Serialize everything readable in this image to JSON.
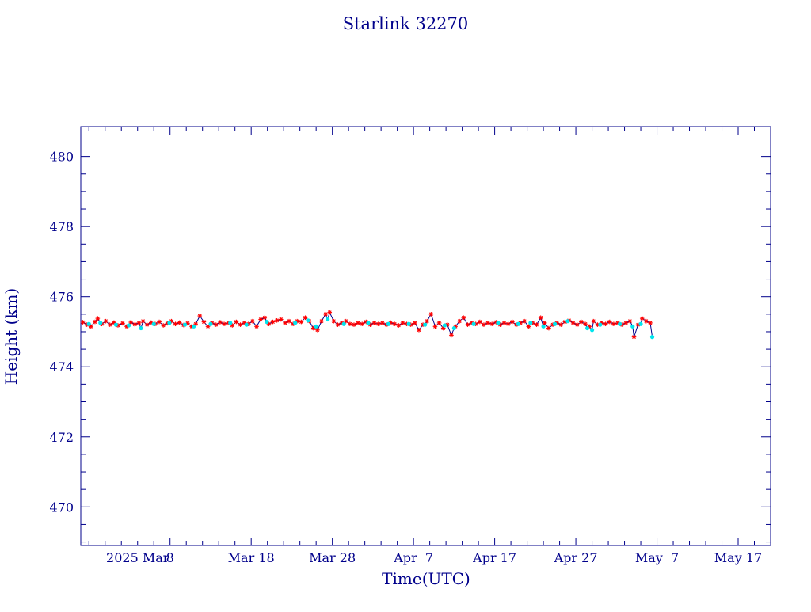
{
  "chart_data": {
    "type": "scatter",
    "title": "Starlink 32270",
    "xlabel": "Time(UTC)",
    "ylabel": "Height (km)",
    "ylim": [
      468.9,
      480.85
    ],
    "xlim": [
      "2025-02-25",
      "2025-05-21"
    ],
    "grid": false,
    "x_ticks": [
      {
        "date": "2025-02-26"
      },
      {
        "date": "2025-02-28"
      },
      {
        "date": "2025-03-02"
      },
      {
        "date": "2025-03-04"
      },
      {
        "date": "2025-03-06"
      },
      {
        "date": "2025-03-08",
        "label": "8"
      },
      {
        "date": "2025-03-10"
      },
      {
        "date": "2025-03-12"
      },
      {
        "date": "2025-03-14"
      },
      {
        "date": "2025-03-16"
      },
      {
        "date": "2025-03-18",
        "label": "Mar 18"
      },
      {
        "date": "2025-03-20"
      },
      {
        "date": "2025-03-22"
      },
      {
        "date": "2025-03-24"
      },
      {
        "date": "2025-03-26"
      },
      {
        "date": "2025-03-28",
        "label": "Mar 28"
      },
      {
        "date": "2025-03-30"
      },
      {
        "date": "2025-04-01"
      },
      {
        "date": "2025-04-03"
      },
      {
        "date": "2025-04-05"
      },
      {
        "date": "2025-04-07",
        "label": "Apr  7"
      },
      {
        "date": "2025-04-09"
      },
      {
        "date": "2025-04-11"
      },
      {
        "date": "2025-04-13"
      },
      {
        "date": "2025-04-15"
      },
      {
        "date": "2025-04-17",
        "label": "Apr 17"
      },
      {
        "date": "2025-04-19"
      },
      {
        "date": "2025-04-21"
      },
      {
        "date": "2025-04-23"
      },
      {
        "date": "2025-04-25"
      },
      {
        "date": "2025-04-27",
        "label": "Apr 27"
      },
      {
        "date": "2025-04-29"
      },
      {
        "date": "2025-05-01"
      },
      {
        "date": "2025-05-03"
      },
      {
        "date": "2025-05-05"
      },
      {
        "date": "2025-05-07",
        "label": "May  7"
      },
      {
        "date": "2025-05-09"
      },
      {
        "date": "2025-05-11"
      },
      {
        "date": "2025-05-13"
      },
      {
        "date": "2025-05-15"
      },
      {
        "date": "2025-05-17",
        "label": "May 17"
      },
      {
        "date": "2025-05-19"
      }
    ],
    "x_label_extra": {
      "text": "2025 Mar",
      "date": "2025-03-04"
    },
    "y_major_ticks": [
      470,
      472,
      474,
      476,
      478,
      480
    ],
    "y_minor_step": 0.5,
    "series": [
      {
        "color": "#ff0000",
        "marker": "asterisk",
        "points": [
          [
            "2025-02-25T06:00",
            475.27
          ],
          [
            "2025-02-25T18:00",
            475.2
          ],
          [
            "2025-02-26T06:00",
            475.15
          ],
          [
            "2025-02-26T18:00",
            475.28
          ],
          [
            "2025-02-27T02:00",
            475.38
          ],
          [
            "2025-02-27T14:00",
            475.22
          ],
          [
            "2025-02-28T02:00",
            475.3
          ],
          [
            "2025-02-28T14:00",
            475.2
          ],
          [
            "2025-03-01T02:00",
            475.26
          ],
          [
            "2025-03-01T14:00",
            475.18
          ],
          [
            "2025-03-02T04:00",
            475.24
          ],
          [
            "2025-03-02T16:00",
            475.15
          ],
          [
            "2025-03-03T04:00",
            475.27
          ],
          [
            "2025-03-03T16:00",
            475.21
          ],
          [
            "2025-03-04T04:00",
            475.25
          ],
          [
            "2025-03-04T16:00",
            475.3
          ],
          [
            "2025-03-05T04:00",
            475.2
          ],
          [
            "2025-03-05T16:00",
            475.26
          ],
          [
            "2025-03-06T04:00",
            475.22
          ],
          [
            "2025-03-06T16:00",
            475.28
          ],
          [
            "2025-03-07T04:00",
            475.18
          ],
          [
            "2025-03-07T16:00",
            475.24
          ],
          [
            "2025-03-08T04:00",
            475.3
          ],
          [
            "2025-03-08T16:00",
            475.22
          ],
          [
            "2025-03-09T04:00",
            475.26
          ],
          [
            "2025-03-09T16:00",
            475.19
          ],
          [
            "2025-03-10T04:00",
            475.24
          ],
          [
            "2025-03-10T16:00",
            475.15
          ],
          [
            "2025-03-11T04:00",
            475.22
          ],
          [
            "2025-03-11T16:00",
            475.45
          ],
          [
            "2025-03-12T04:00",
            475.28
          ],
          [
            "2025-03-12T16:00",
            475.15
          ],
          [
            "2025-03-13T04:00",
            475.25
          ],
          [
            "2025-03-13T16:00",
            475.2
          ],
          [
            "2025-03-14T04:00",
            475.27
          ],
          [
            "2025-03-14T16:00",
            475.22
          ],
          [
            "2025-03-15T04:00",
            475.25
          ],
          [
            "2025-03-15T16:00",
            475.18
          ],
          [
            "2025-03-16T04:00",
            475.28
          ],
          [
            "2025-03-16T16:00",
            475.2
          ],
          [
            "2025-03-17T04:00",
            475.25
          ],
          [
            "2025-03-17T16:00",
            475.22
          ],
          [
            "2025-03-18T04:00",
            475.3
          ],
          [
            "2025-03-18T16:00",
            475.15
          ],
          [
            "2025-03-19T04:00",
            475.35
          ],
          [
            "2025-03-19T16:00",
            475.4
          ],
          [
            "2025-03-20T04:00",
            475.22
          ],
          [
            "2025-03-20T16:00",
            475.28
          ],
          [
            "2025-03-21T04:00",
            475.32
          ],
          [
            "2025-03-21T16:00",
            475.35
          ],
          [
            "2025-03-22T04:00",
            475.25
          ],
          [
            "2025-03-22T16:00",
            475.3
          ],
          [
            "2025-03-23T04:00",
            475.22
          ],
          [
            "2025-03-23T16:00",
            475.3
          ],
          [
            "2025-03-24T04:00",
            475.28
          ],
          [
            "2025-03-24T16:00",
            475.4
          ],
          [
            "2025-03-25T04:00",
            475.3
          ],
          [
            "2025-03-25T16:00",
            475.1
          ],
          [
            "2025-03-26T04:00",
            475.05
          ],
          [
            "2025-03-26T16:00",
            475.3
          ],
          [
            "2025-03-27T04:00",
            475.5
          ],
          [
            "2025-03-27T16:00",
            475.55
          ],
          [
            "2025-03-28T04:00",
            475.3
          ],
          [
            "2025-03-28T16:00",
            475.2
          ],
          [
            "2025-03-29T04:00",
            475.25
          ],
          [
            "2025-03-29T16:00",
            475.3
          ],
          [
            "2025-03-30T04:00",
            475.22
          ],
          [
            "2025-03-30T16:00",
            475.2
          ],
          [
            "2025-03-31T04:00",
            475.25
          ],
          [
            "2025-03-31T16:00",
            475.22
          ],
          [
            "2025-04-01T04:00",
            475.28
          ],
          [
            "2025-04-01T16:00",
            475.2
          ],
          [
            "2025-04-02T04:00",
            475.25
          ],
          [
            "2025-04-02T16:00",
            475.22
          ],
          [
            "2025-04-03T04:00",
            475.25
          ],
          [
            "2025-04-03T16:00",
            475.2
          ],
          [
            "2025-04-04T04:00",
            475.26
          ],
          [
            "2025-04-04T16:00",
            475.22
          ],
          [
            "2025-04-05T04:00",
            475.18
          ],
          [
            "2025-04-05T16:00",
            475.25
          ],
          [
            "2025-04-06T04:00",
            475.22
          ],
          [
            "2025-04-06T16:00",
            475.2
          ],
          [
            "2025-04-07T04:00",
            475.25
          ],
          [
            "2025-04-07T16:00",
            475.05
          ],
          [
            "2025-04-08T04:00",
            475.2
          ],
          [
            "2025-04-08T16:00",
            475.3
          ],
          [
            "2025-04-09T04:00",
            475.5
          ],
          [
            "2025-04-09T16:00",
            475.15
          ],
          [
            "2025-04-10T04:00",
            475.25
          ],
          [
            "2025-04-10T16:00",
            475.1
          ],
          [
            "2025-04-11T04:00",
            475.2
          ],
          [
            "2025-04-11T16:00",
            474.9
          ],
          [
            "2025-04-12T04:00",
            475.15
          ],
          [
            "2025-04-12T16:00",
            475.3
          ],
          [
            "2025-04-13T04:00",
            475.4
          ],
          [
            "2025-04-13T16:00",
            475.2
          ],
          [
            "2025-04-14T04:00",
            475.25
          ],
          [
            "2025-04-14T16:00",
            475.22
          ],
          [
            "2025-04-15T04:00",
            475.28
          ],
          [
            "2025-04-15T16:00",
            475.2
          ],
          [
            "2025-04-16T04:00",
            475.25
          ],
          [
            "2025-04-16T16:00",
            475.22
          ],
          [
            "2025-04-17T04:00",
            475.27
          ],
          [
            "2025-04-17T16:00",
            475.2
          ],
          [
            "2025-04-18T04:00",
            475.25
          ],
          [
            "2025-04-18T16:00",
            475.22
          ],
          [
            "2025-04-19T04:00",
            475.28
          ],
          [
            "2025-04-19T16:00",
            475.2
          ],
          [
            "2025-04-20T04:00",
            475.25
          ],
          [
            "2025-04-20T16:00",
            475.3
          ],
          [
            "2025-04-21T04:00",
            475.15
          ],
          [
            "2025-04-21T16:00",
            475.25
          ],
          [
            "2025-04-22T04:00",
            475.2
          ],
          [
            "2025-04-22T16:00",
            475.4
          ],
          [
            "2025-04-23T04:00",
            475.25
          ],
          [
            "2025-04-23T16:00",
            475.1
          ],
          [
            "2025-04-24T04:00",
            475.2
          ],
          [
            "2025-04-24T16:00",
            475.25
          ],
          [
            "2025-04-25T04:00",
            475.2
          ],
          [
            "2025-04-25T16:00",
            475.28
          ],
          [
            "2025-04-26T04:00",
            475.32
          ],
          [
            "2025-04-26T16:00",
            475.25
          ],
          [
            "2025-04-27T04:00",
            475.2
          ],
          [
            "2025-04-27T16:00",
            475.28
          ],
          [
            "2025-04-28T04:00",
            475.22
          ],
          [
            "2025-04-28T16:00",
            475.15
          ],
          [
            "2025-04-29T04:00",
            475.3
          ],
          [
            "2025-04-29T16:00",
            475.2
          ],
          [
            "2025-04-30T04:00",
            475.25
          ],
          [
            "2025-04-30T16:00",
            475.22
          ],
          [
            "2025-05-01T04:00",
            475.28
          ],
          [
            "2025-05-01T16:00",
            475.22
          ],
          [
            "2025-05-02T04:00",
            475.25
          ],
          [
            "2025-05-02T16:00",
            475.2
          ],
          [
            "2025-05-03T04:00",
            475.25
          ],
          [
            "2025-05-03T16:00",
            475.3
          ],
          [
            "2025-05-04T04:00",
            474.85
          ],
          [
            "2025-05-04T16:00",
            475.2
          ],
          [
            "2025-05-05T04:00",
            475.38
          ],
          [
            "2025-05-05T16:00",
            475.3
          ],
          [
            "2025-05-06T04:00",
            475.25
          ]
        ]
      },
      {
        "color": "#00e5ee",
        "marker": "dot",
        "points": [
          [
            "2025-02-26T00:00",
            475.22
          ],
          [
            "2025-02-27T10:00",
            475.25
          ],
          [
            "2025-03-01T08:00",
            475.2
          ],
          [
            "2025-03-02T22:00",
            475.18
          ],
          [
            "2025-03-04T10:00",
            475.1
          ],
          [
            "2025-03-06T00:00",
            475.22
          ],
          [
            "2025-03-07T22:00",
            475.25
          ],
          [
            "2025-03-09T20:00",
            475.2
          ],
          [
            "2025-03-10T22:00",
            475.15
          ],
          [
            "2025-03-13T00:00",
            475.22
          ],
          [
            "2025-03-15T10:00",
            475.25
          ],
          [
            "2025-03-17T10:00",
            475.2
          ],
          [
            "2025-03-19T22:00",
            475.28
          ],
          [
            "2025-03-23T10:00",
            475.25
          ],
          [
            "2025-03-25T00:00",
            475.32
          ],
          [
            "2025-03-26T00:00",
            475.15
          ],
          [
            "2025-03-27T10:00",
            475.35
          ],
          [
            "2025-03-29T10:00",
            475.22
          ],
          [
            "2025-04-01T10:00",
            475.25
          ],
          [
            "2025-04-03T22:00",
            475.22
          ],
          [
            "2025-04-06T10:00",
            475.22
          ],
          [
            "2025-04-08T10:00",
            475.2
          ],
          [
            "2025-04-10T20:00",
            475.18
          ],
          [
            "2025-04-12T00:00",
            475.1
          ],
          [
            "2025-04-14T10:00",
            475.22
          ],
          [
            "2025-04-17T10:00",
            475.25
          ],
          [
            "2025-04-19T22:00",
            475.22
          ],
          [
            "2025-04-21T10:00",
            475.25
          ],
          [
            "2025-04-23T00:00",
            475.15
          ],
          [
            "2025-04-24T10:00",
            475.22
          ],
          [
            "2025-04-26T00:00",
            475.3
          ],
          [
            "2025-04-28T10:00",
            475.1
          ],
          [
            "2025-04-29T00:00",
            475.05
          ],
          [
            "2025-04-30T00:00",
            475.2
          ],
          [
            "2025-05-02T10:00",
            475.22
          ],
          [
            "2025-05-04T00:00",
            475.15
          ],
          [
            "2025-05-05T00:00",
            475.22
          ],
          [
            "2025-05-06T10:00",
            474.85
          ]
        ]
      }
    ]
  }
}
